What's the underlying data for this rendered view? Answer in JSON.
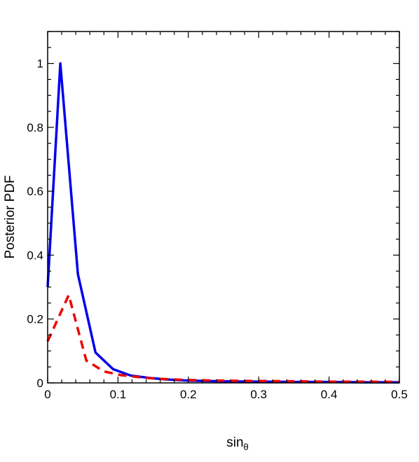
{
  "chart_data": {
    "type": "line",
    "title": "",
    "xlabel": "sin",
    "xlabel_subscript": "θ",
    "ylabel": "Posterior PDF",
    "xlim": [
      0,
      0.5
    ],
    "ylim": [
      0,
      1.1
    ],
    "xticks": [
      "0",
      "0.1",
      "0.2",
      "0.3",
      "0.4",
      "0.5"
    ],
    "yticks": [
      "0",
      "0.2",
      "0.4",
      "0.6",
      "0.8",
      "1"
    ],
    "grid": false,
    "series": [
      {
        "color": "#0000ee",
        "style": "solid",
        "x": [
          0,
          0.018,
          0.043,
          0.068,
          0.093,
          0.118,
          0.143,
          0.168,
          0.2,
          0.25,
          0.3,
          0.35,
          0.4,
          0.45,
          0.5
        ],
        "y": [
          0.3,
          1.0,
          0.34,
          0.095,
          0.043,
          0.023,
          0.016,
          0.011,
          0.007,
          0.005,
          0.004,
          0.003,
          0.003,
          0.002,
          0.002
        ]
      },
      {
        "color": "#ee0000",
        "style": "dashed",
        "x": [
          0,
          0.03,
          0.055,
          0.08,
          0.105,
          0.13,
          0.155,
          0.2,
          0.25,
          0.3,
          0.35,
          0.4,
          0.45,
          0.5
        ],
        "y": [
          0.13,
          0.275,
          0.07,
          0.036,
          0.024,
          0.018,
          0.013,
          0.009,
          0.007,
          0.006,
          0.005,
          0.004,
          0.004,
          0.003
        ]
      }
    ]
  }
}
